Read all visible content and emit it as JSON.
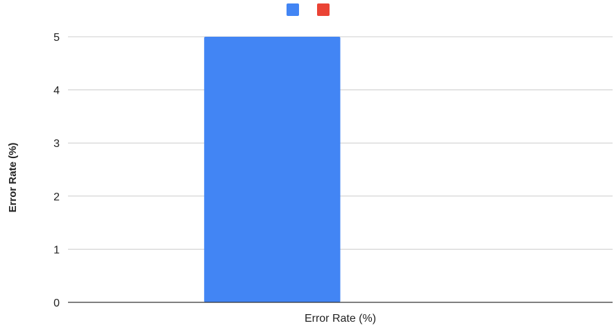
{
  "chart_data": {
    "type": "bar",
    "categories": [
      "Error Rate (%)"
    ],
    "series": [
      {
        "values": [
          5
        ],
        "color": "#4285f4"
      },
      {
        "values": [
          0
        ],
        "color": "#ea4335"
      }
    ],
    "ylabel": "Error Rate (%)",
    "ylim": [
      0,
      5
    ],
    "yticks": [
      "0",
      "1",
      "2",
      "3",
      "4",
      "5"
    ],
    "grid": true,
    "legend_position": "top"
  }
}
